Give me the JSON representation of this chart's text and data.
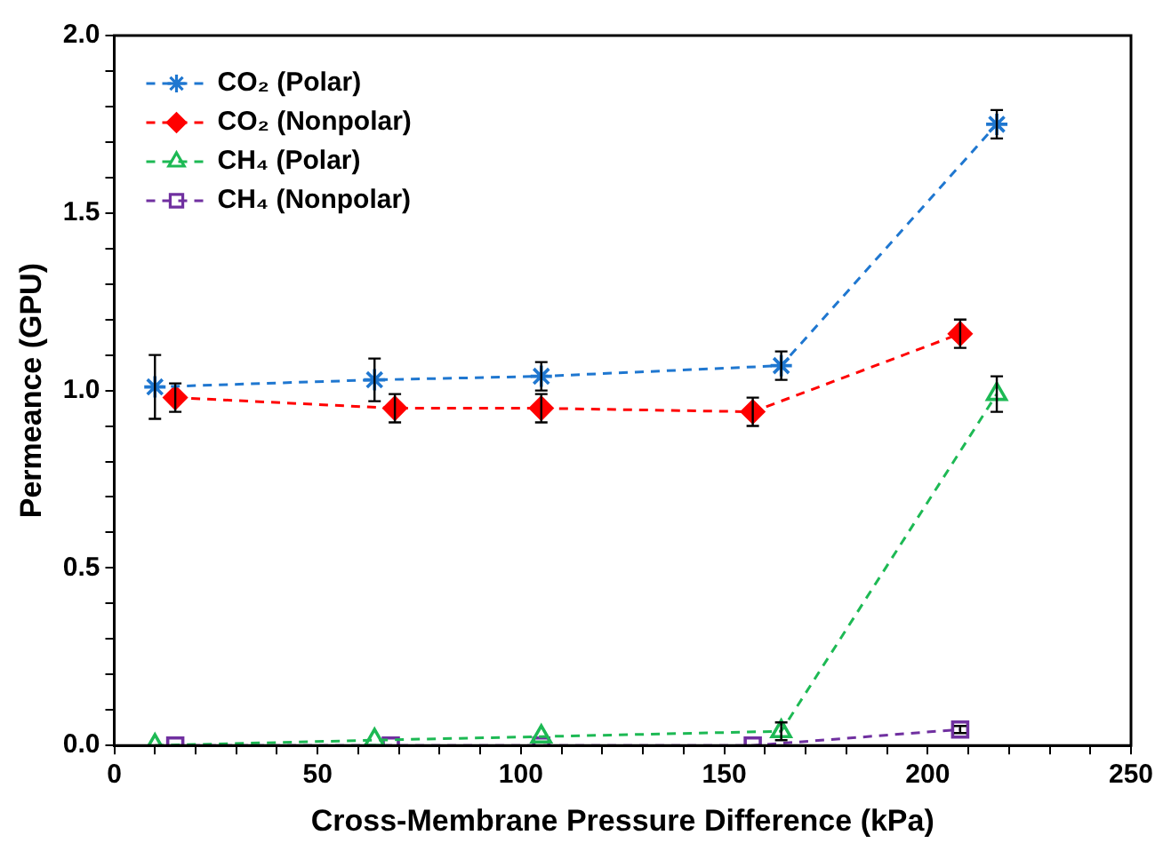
{
  "chart_data": {
    "type": "line",
    "xlabel": "Cross-Membrane Pressure Difference (kPa)",
    "ylabel": "Permeance (GPU)",
    "xlim": [
      0,
      250
    ],
    "xticks": [
      0,
      {
        "value": 10,
        "label": null
      },
      {
        "value": 20,
        "label": null
      },
      {
        "value": 30,
        "label": null
      },
      {
        "value": 40,
        "label": null
      },
      50,
      {
        "value": 60,
        "label": null
      },
      {
        "value": 70,
        "label": null
      },
      {
        "value": 80,
        "label": null
      },
      {
        "value": 90,
        "label": null
      },
      100,
      {
        "value": 110,
        "label": null
      },
      {
        "value": 120,
        "label": null
      },
      {
        "value": 130,
        "label": null
      },
      {
        "value": 140,
        "label": null
      },
      150,
      {
        "value": 160,
        "label": null
      },
      {
        "value": 170,
        "label": null
      },
      {
        "value": 180,
        "label": null
      },
      {
        "value": 190,
        "label": null
      },
      200,
      {
        "value": 210,
        "label": null
      },
      {
        "value": 220,
        "label": null
      },
      {
        "value": 230,
        "label": null
      },
      {
        "value": 240,
        "label": null
      },
      250
    ],
    "ylim": [
      0,
      2
    ],
    "yticks": [
      {
        "value": 0,
        "label": "0.0"
      },
      {
        "value": 0.1,
        "label": null
      },
      {
        "value": 0.2,
        "label": null
      },
      {
        "value": 0.3,
        "label": null
      },
      {
        "value": 0.4,
        "label": null
      },
      {
        "value": 0.5,
        "label": "0.5"
      },
      {
        "value": 0.6,
        "label": null
      },
      {
        "value": 0.7,
        "label": null
      },
      {
        "value": 0.8,
        "label": null
      },
      {
        "value": 0.9,
        "label": null
      },
      {
        "value": 1,
        "label": "1.0"
      },
      {
        "value": 1.1,
        "label": null
      },
      {
        "value": 1.2,
        "label": null
      },
      {
        "value": 1.3,
        "label": null
      },
      {
        "value": 1.4,
        "label": null
      },
      {
        "value": 1.5,
        "label": "1.5"
      },
      {
        "value": 1.6,
        "label": null
      },
      {
        "value": 1.7,
        "label": null
      },
      {
        "value": 1.8,
        "label": null
      },
      {
        "value": 1.9,
        "label": null
      },
      {
        "value": 2,
        "label": "2.0"
      }
    ],
    "grid": false,
    "legend": "top left",
    "line_style": "dashed",
    "series": [
      {
        "name": "CO₂ (Polar)",
        "color": "#1f77d0",
        "marker": "cross",
        "x": [
          10,
          64,
          105,
          164,
          217
        ],
        "values": [
          1.01,
          1.03,
          1.04,
          1.07,
          1.75
        ],
        "errors": [
          0.09,
          0.06,
          0.04,
          0.04,
          0.04
        ]
      },
      {
        "name": "CO₂ (Nonpolar)",
        "color": "#ff0000",
        "marker": "diamond",
        "x": [
          15,
          69,
          105,
          157,
          208
        ],
        "values": [
          0.98,
          0.95,
          0.95,
          0.94,
          1.16
        ],
        "errors": [
          0.04,
          0.04,
          0.04,
          0.04,
          0.04
        ]
      },
      {
        "name": "CH₄ (Polar)",
        "color": "#1db954",
        "marker": "triangle",
        "x": [
          10,
          64,
          105,
          164,
          217
        ],
        "values": [
          0,
          0.015,
          0.025,
          0.04,
          0.99
        ],
        "errors": [
          null,
          null,
          null,
          0.025,
          0.05
        ]
      },
      {
        "name": "CH₄ (Nonpolar)",
        "color": "#7030a0",
        "marker": "square",
        "x": [
          15,
          68,
          105,
          157,
          208
        ],
        "values": [
          0,
          0,
          0,
          0,
          0.045
        ],
        "errors": [
          null,
          null,
          null,
          null,
          0.01
        ]
      }
    ]
  }
}
